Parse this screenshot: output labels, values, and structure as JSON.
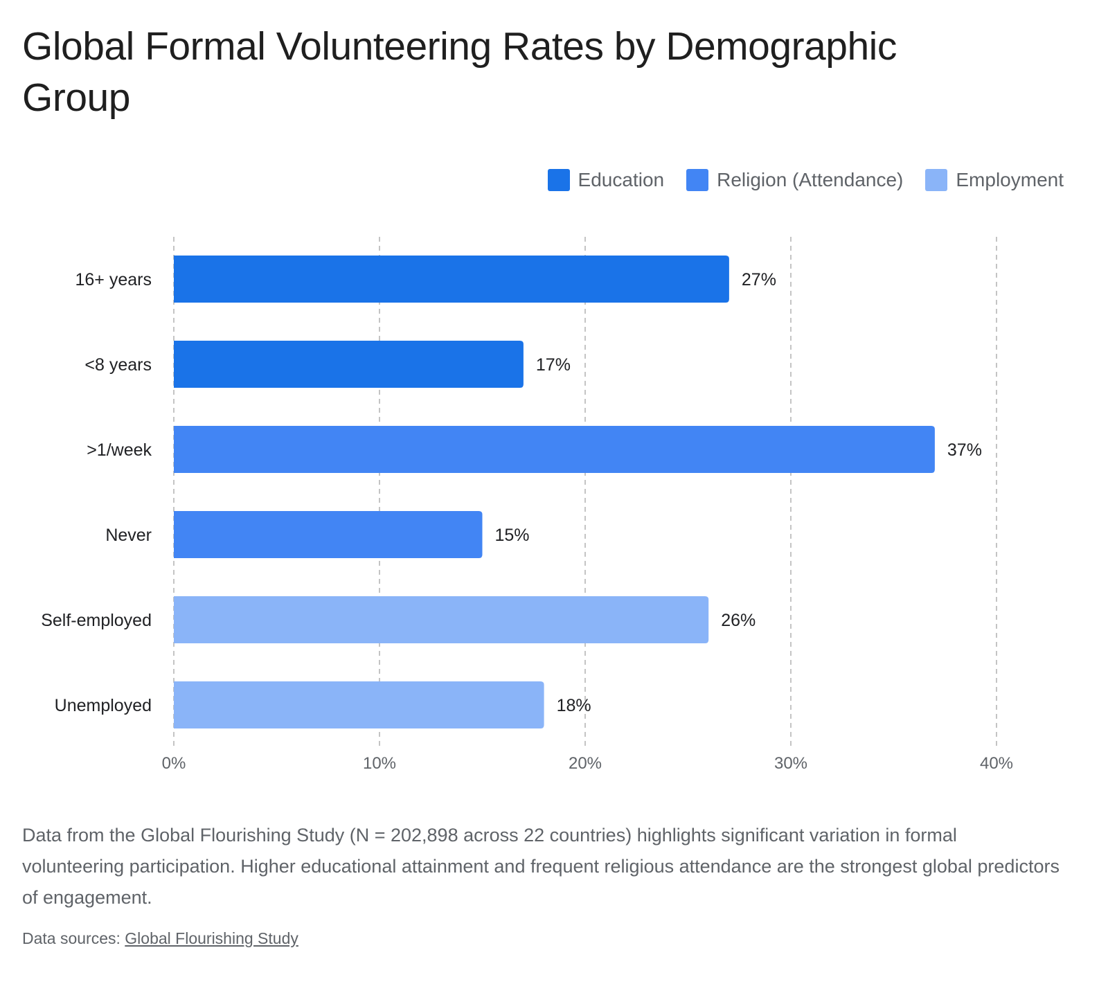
{
  "title": "Global Formal Volunteering Rates by Demographic Group",
  "legend": [
    {
      "name": "Education",
      "color": "#1a73e8"
    },
    {
      "name": "Religion (Attendance)",
      "color": "#4285f4"
    },
    {
      "name": "Employment",
      "color": "#8ab4f8"
    }
  ],
  "chart_data": {
    "type": "bar",
    "orientation": "horizontal",
    "categories": [
      "16+ years",
      "<8 years",
      ">1/week",
      "Never",
      "Self-employed",
      "Unemployed"
    ],
    "values": [
      27,
      17,
      37,
      15,
      26,
      18
    ],
    "value_labels": [
      "27%",
      "17%",
      "37%",
      "15%",
      "26%",
      "18%"
    ],
    "groups": [
      "Education",
      "Education",
      "Religion (Attendance)",
      "Religion (Attendance)",
      "Employment",
      "Employment"
    ],
    "xlim": [
      0,
      40
    ],
    "xticks": [
      0,
      10,
      20,
      30,
      40
    ],
    "xtick_labels": [
      "0%",
      "10%",
      "20%",
      "30%",
      "40%"
    ],
    "grid": "vertical dashed",
    "legend_position": "top-right"
  },
  "caption": "Data from the Global Flourishing Study (N = 202,898 across 22 countries) highlights significant variation in formal volunteering participation. Higher educational attainment and frequent religious attendance are the strongest global predictors of engagement.",
  "sources": {
    "prefix": "Data sources:",
    "link_label": "Global Flourishing Study"
  }
}
